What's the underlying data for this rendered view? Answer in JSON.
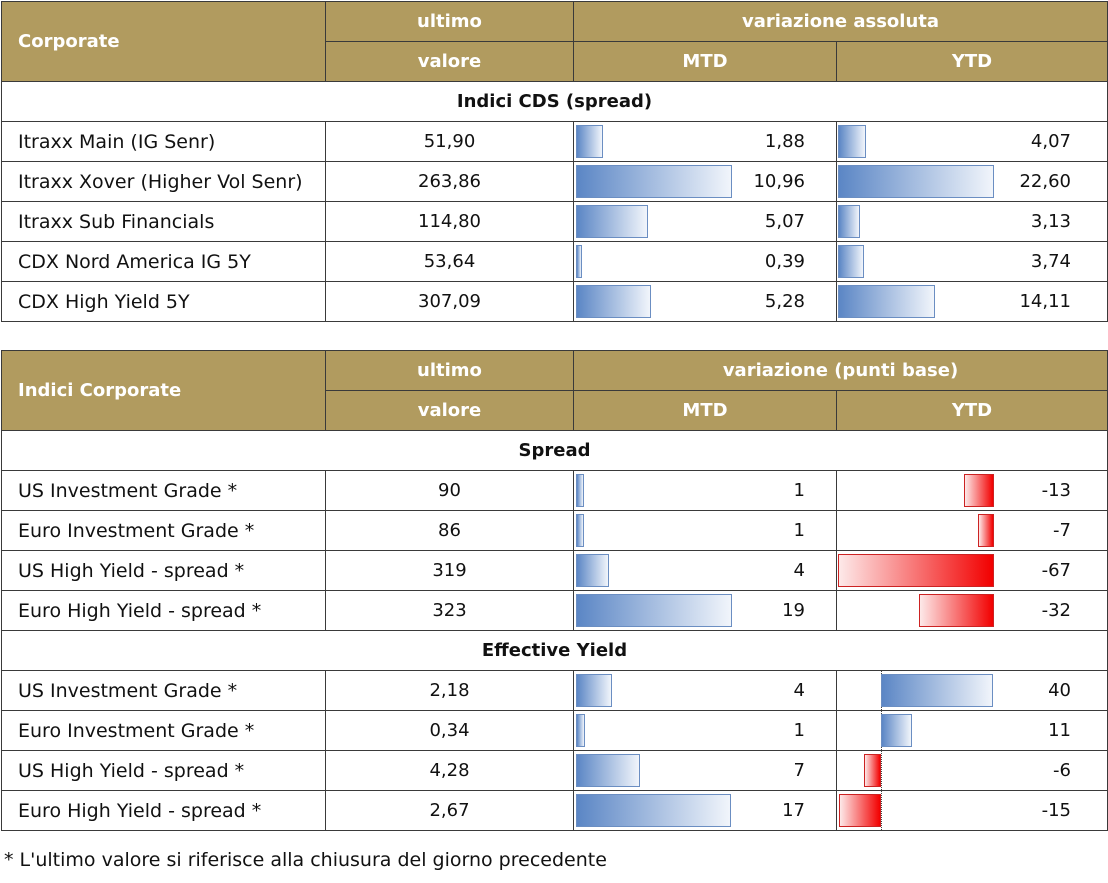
{
  "table1": {
    "header": {
      "corner": "Corporate",
      "col_value_line1": "ultimo",
      "col_value_line2": "valore",
      "group": "variazione assoluta",
      "mtd": "MTD",
      "ytd": "YTD"
    },
    "section": "Indici CDS (spread)",
    "rows": [
      {
        "name": "Itraxx Main (IG Senr)",
        "value": "51,90",
        "mtd": "1,88",
        "ytd": "4,07",
        "mtd_num": 1.88,
        "ytd_num": 4.07
      },
      {
        "name": "Itraxx Xover (Higher Vol Senr)",
        "value": "263,86",
        "mtd": "10,96",
        "ytd": "22,60",
        "mtd_num": 10.96,
        "ytd_num": 22.6
      },
      {
        "name": "Itraxx Sub Financials",
        "value": "114,80",
        "mtd": "5,07",
        "ytd": "3,13",
        "mtd_num": 5.07,
        "ytd_num": 3.13
      },
      {
        "name": "CDX Nord America IG 5Y",
        "value": "53,64",
        "mtd": "0,39",
        "ytd": "3,74",
        "mtd_num": 0.39,
        "ytd_num": 3.74
      },
      {
        "name": "CDX High Yield 5Y",
        "value": "307,09",
        "mtd": "5,28",
        "ytd": "14,11",
        "mtd_num": 5.28,
        "ytd_num": 14.11
      }
    ]
  },
  "table2": {
    "header": {
      "corner": "Indici Corporate",
      "col_value_line1": "ultimo",
      "col_value_line2": "valore",
      "group": "variazione (punti base)",
      "mtd": "MTD",
      "ytd": "YTD"
    },
    "section_spread": "Spread",
    "spread_rows": [
      {
        "name": "US Investment Grade *",
        "value": "90",
        "mtd": "1",
        "ytd": "-13",
        "mtd_num": 1,
        "ytd_num": -13
      },
      {
        "name": "Euro Investment Grade *",
        "value": "86",
        "mtd": "1",
        "ytd": "-7",
        "mtd_num": 1,
        "ytd_num": -7
      },
      {
        "name": "US High Yield  - spread *",
        "value": "319",
        "mtd": "4",
        "ytd": "-67",
        "mtd_num": 4,
        "ytd_num": -67
      },
      {
        "name": "Euro High Yield  - spread *",
        "value": "323",
        "mtd": "19",
        "ytd": "-32",
        "mtd_num": 19,
        "ytd_num": -32
      }
    ],
    "section_yield": "Effective Yield",
    "yield_rows": [
      {
        "name": "US Investment Grade *",
        "value": "2,18",
        "mtd": "4",
        "ytd": "40",
        "mtd_num": 4,
        "ytd_num": 40
      },
      {
        "name": "Euro Investment Grade *",
        "value": "0,34",
        "mtd": "1",
        "ytd": "11",
        "mtd_num": 1,
        "ytd_num": 11
      },
      {
        "name": "US High Yield  - spread *",
        "value": "4,28",
        "mtd": "7",
        "ytd": "-6",
        "mtd_num": 7,
        "ytd_num": -6
      },
      {
        "name": "Euro High Yield  - spread *",
        "value": "2,67",
        "mtd": "17",
        "ytd": "-15",
        "mtd_num": 17,
        "ytd_num": -15
      }
    ]
  },
  "footnote": "* L'ultimo valore si riferisce alla chiusura del giorno precedente",
  "colors": {
    "header_gold": "#b19b5f",
    "bar_blue": "#5b86c5",
    "bar_red": "#f20000"
  }
}
